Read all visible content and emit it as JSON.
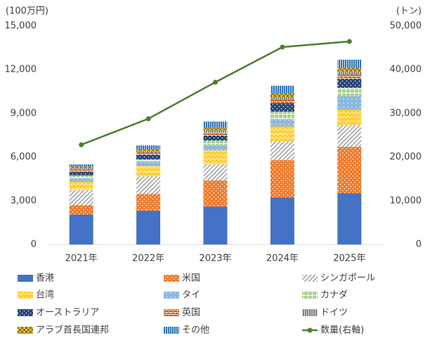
{
  "chart_data": {
    "type": "bar",
    "stacked": true,
    "y_label": "(100万円)",
    "y2_label": "(トン)",
    "categories": [
      "2021年",
      "2022年",
      "2023年",
      "2024年",
      "2025年"
    ],
    "ylim": [
      0,
      15000
    ],
    "yticks": [
      0,
      {
        "value": 3000,
        "label": "3,000"
      },
      {
        "value": 6000,
        "label": "6,000"
      },
      {
        "value": 9000,
        "label": "9,000"
      },
      {
        "value": 12000,
        "label": "12,000"
      },
      {
        "value": 15000,
        "label": "15,000"
      }
    ],
    "y2lim": [
      0,
      50000
    ],
    "y2ticks": [
      0,
      {
        "value": 10000,
        "label": "10,000"
      },
      {
        "value": 20000,
        "label": "20,000"
      },
      {
        "value": 30000,
        "label": "30,000"
      },
      {
        "value": 40000,
        "label": "40,000"
      },
      {
        "value": 50000,
        "label": "50,000"
      }
    ],
    "series": [
      {
        "name": "香港",
        "color": "#4472c4",
        "values": [
          2050,
          2320,
          2600,
          3230,
          3520
        ]
      },
      {
        "name": "米国",
        "color": "#ed7d31",
        "values": [
          650,
          1150,
          1790,
          2560,
          3180
        ]
      },
      {
        "name": "シンガポール",
        "color": "#a5a5a5",
        "values": [
          1050,
          1210,
          1110,
          1300,
          1500
        ]
      },
      {
        "name": "台湾",
        "color": "#ffc000",
        "values": [
          550,
          720,
          960,
          1010,
          1060
        ]
      },
      {
        "name": "タイ",
        "color": "#5b9bd5",
        "values": [
          250,
          290,
          340,
          490,
          920
        ]
      },
      {
        "name": "カナダ",
        "color": "#70ad47",
        "values": [
          200,
          150,
          340,
          530,
          580
        ]
      },
      {
        "name": "オーストラリア",
        "color": "#264478",
        "values": [
          250,
          330,
          340,
          580,
          620
        ]
      },
      {
        "name": "英国",
        "color": "#c55a11",
        "values": [
          150,
          150,
          190,
          240,
          290
        ]
      },
      {
        "name": "ドイツ",
        "color": "#7f7f7f",
        "values": [
          100,
          100,
          190,
          190,
          200
        ]
      },
      {
        "name": "アラブ首長国連邦",
        "color": "#997300",
        "values": [
          100,
          90,
          150,
          240,
          240
        ]
      },
      {
        "name": "その他",
        "color": "#2e75b6",
        "values": [
          150,
          290,
          430,
          530,
          580
        ]
      },
      {
        "name": "数量(右軸)",
        "color": "#4e7f2f",
        "type": "line",
        "axis": "y2",
        "values": [
          22830,
          28780,
          37140,
          45180,
          46460
        ]
      }
    ]
  }
}
